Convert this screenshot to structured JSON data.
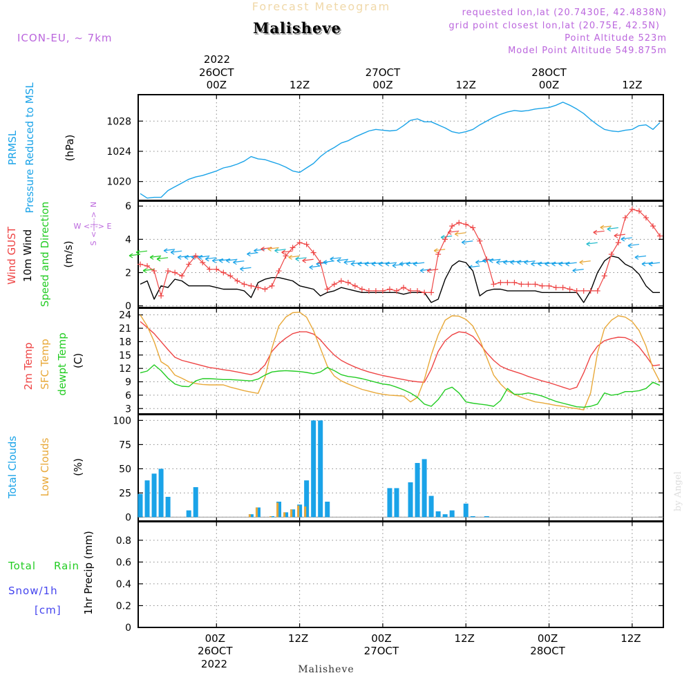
{
  "header": {
    "top_title": "Forecast Meteogram",
    "location": "Malisheve",
    "model": "ICON-EU, ~ 7km",
    "requested": "requested lon,lat (20.7430E, 42.4838N)",
    "grid_point": "grid point closest lon,lat (20.75E, 42.5N)",
    "point_alt": "Point Altitude 523m",
    "model_alt": "Model Point Altitude 549.875m",
    "credit": "by Angel",
    "bottom_location": "Malisheve"
  },
  "time_axis": {
    "top_year": "2022",
    "bottom_year": "2022",
    "ticks": [
      {
        "hour": 12,
        "label": "00Z",
        "date": "26OCT"
      },
      {
        "hour": 24,
        "label": "12Z",
        "date": ""
      },
      {
        "hour": 36,
        "label": "00Z",
        "date": "27OCT"
      },
      {
        "hour": 48,
        "label": "12Z",
        "date": ""
      },
      {
        "hour": 60,
        "label": "00Z",
        "date": "28OCT"
      },
      {
        "hour": 72,
        "label": "12Z",
        "date": ""
      }
    ],
    "range": [
      0.7,
      76.5
    ]
  },
  "colors": {
    "blue": "#1aa3e8",
    "red": "#ee4444",
    "green": "#22cc22",
    "orange": "#e8a838",
    "black": "#000000",
    "purple": "#bb66dd",
    "snow_blue": "#4444ee",
    "cream": "#f0d8a8",
    "grid": "#888888"
  },
  "panels": {
    "pressure": {
      "labels": [
        "PRMSL",
        "Pressure Reduced to MSL",
        "(hPa)"
      ],
      "yticks": [
        1020,
        1024,
        1028
      ]
    },
    "wind": {
      "labels": [
        "Wind GUST",
        "10m Wind",
        "Speed and Direction",
        "(m/s)"
      ],
      "compass": [
        "N",
        "W <-|-> E",
        "S"
      ],
      "yticks": [
        0,
        2,
        4,
        6
      ]
    },
    "temp": {
      "labels": [
        "2m Temp",
        "SFC Temp",
        "dewpt Temp",
        "(C)"
      ],
      "yticks": [
        3,
        6,
        9,
        12,
        15,
        18,
        21,
        24
      ]
    },
    "clouds": {
      "labels": [
        "Total Clouds",
        "Low Clouds",
        "(%)"
      ],
      "yticks": [
        0,
        25,
        50,
        75,
        100
      ]
    },
    "precip": {
      "labels": [
        "Total",
        "Rain",
        "Snow/1h",
        "[cm]",
        "1hr Precip (mm)"
      ],
      "yticks": [
        "0",
        "0.2",
        "0.4",
        "0.6",
        "0.8"
      ]
    }
  },
  "chart_data": {
    "type": "line",
    "x_unit": "hours from 25OCT 12Z",
    "pressure": {
      "name": "PRMSL",
      "ylim": [
        1017.5,
        1031.5
      ],
      "x": [
        1,
        2,
        3,
        4,
        5,
        6,
        7,
        8,
        9,
        10,
        11,
        12,
        13,
        14,
        15,
        16,
        17,
        18,
        19,
        20,
        21,
        22,
        23,
        24,
        25,
        26,
        27,
        28,
        29,
        30,
        31,
        32,
        33,
        34,
        35,
        36,
        37,
        38,
        39,
        40,
        41,
        42,
        43,
        44,
        45,
        46,
        47,
        48,
        49,
        50,
        51,
        52,
        53,
        54,
        55,
        56,
        57,
        58,
        59,
        60,
        61,
        62,
        63,
        64,
        65,
        66,
        67,
        68,
        69,
        70,
        71,
        72,
        73,
        74,
        75,
        76
      ],
      "values": [
        1018.4,
        1017.8,
        1017.9,
        1017.9,
        1018.8,
        1019.3,
        1019.8,
        1020.3,
        1020.6,
        1020.8,
        1021.1,
        1021.4,
        1021.8,
        1022.0,
        1022.3,
        1022.7,
        1023.3,
        1023.0,
        1022.9,
        1022.6,
        1022.3,
        1021.9,
        1021.4,
        1021.2,
        1021.8,
        1022.4,
        1023.3,
        1024.0,
        1024.5,
        1025.1,
        1025.4,
        1025.9,
        1026.3,
        1026.7,
        1026.9,
        1026.8,
        1026.7,
        1026.8,
        1027.4,
        1028.1,
        1028.3,
        1027.9,
        1027.9,
        1027.5,
        1027.1,
        1026.6,
        1026.4,
        1026.6,
        1026.9,
        1027.5,
        1028.0,
        1028.5,
        1028.9,
        1029.2,
        1029.4,
        1029.3,
        1029.4,
        1029.6,
        1029.7,
        1029.8,
        1030.1,
        1030.5,
        1030.1,
        1029.6,
        1029.0,
        1028.2,
        1027.5,
        1026.9,
        1026.7,
        1026.6,
        1026.8,
        1026.9,
        1027.4,
        1027.5,
        1026.9,
        1027.8
      ]
    },
    "wind": {
      "ylim": [
        -0.1,
        6.3
      ],
      "x": [
        1,
        2,
        3,
        4,
        5,
        6,
        7,
        8,
        9,
        10,
        11,
        12,
        13,
        14,
        15,
        16,
        17,
        18,
        19,
        20,
        21,
        22,
        23,
        24,
        25,
        26,
        27,
        28,
        29,
        30,
        31,
        32,
        33,
        34,
        35,
        36,
        37,
        38,
        39,
        40,
        41,
        42,
        43,
        44,
        45,
        46,
        47,
        48,
        49,
        50,
        51,
        52,
        53,
        54,
        55,
        56,
        57,
        58,
        59,
        60,
        61,
        62,
        63,
        64,
        65,
        66,
        67,
        68,
        69,
        70,
        71,
        72,
        73,
        74,
        75,
        76
      ],
      "series": [
        {
          "name": "Wind GUST",
          "values": [
            2.5,
            2.4,
            2.1,
            0.6,
            2.1,
            2.0,
            1.8,
            2.5,
            3.0,
            2.6,
            2.2,
            2.2,
            2.0,
            1.8,
            1.5,
            1.3,
            1.2,
            1.1,
            1.0,
            1.2,
            2.1,
            3.0,
            3.5,
            3.8,
            3.7,
            3.2,
            2.6,
            1.0,
            1.3,
            1.5,
            1.4,
            1.2,
            1.0,
            0.9,
            0.9,
            0.9,
            1.0,
            0.9,
            1.1,
            0.9,
            0.9,
            0.8,
            0.8,
            3.1,
            4.0,
            4.8,
            5.0,
            4.9,
            4.7,
            3.9,
            2.8,
            1.3,
            1.4,
            1.4,
            1.4,
            1.3,
            1.3,
            1.3,
            1.2,
            1.2,
            1.1,
            1.1,
            1.0,
            0.9,
            0.9,
            0.9,
            0.9,
            1.8,
            3.1,
            3.8,
            5.3,
            5.8,
            5.7,
            5.3,
            4.8,
            4.2
          ]
        },
        {
          "name": "10m Wind",
          "values": [
            1.3,
            1.5,
            0.4,
            1.2,
            1.1,
            1.6,
            1.5,
            1.2,
            1.2,
            1.2,
            1.2,
            1.1,
            1.0,
            1.0,
            1.0,
            0.9,
            0.5,
            1.4,
            1.6,
            1.7,
            1.7,
            1.6,
            1.5,
            1.2,
            1.1,
            1.0,
            0.6,
            0.8,
            0.9,
            1.1,
            1.0,
            0.9,
            0.8,
            0.8,
            0.8,
            0.8,
            0.8,
            0.8,
            0.7,
            0.8,
            0.8,
            0.8,
            0.2,
            0.4,
            1.6,
            2.4,
            2.7,
            2.6,
            2.1,
            0.6,
            0.9,
            1.0,
            1.0,
            0.9,
            0.9,
            0.9,
            0.9,
            0.9,
            0.8,
            0.8,
            0.8,
            0.8,
            0.8,
            0.8,
            0.2,
            0.9,
            2.0,
            2.7,
            3.0,
            2.9,
            2.5,
            2.3,
            1.9,
            1.2,
            0.8,
            0.8
          ]
        }
      ]
    },
    "temp": {
      "ylim": [
        1.8,
        25.5
      ],
      "x": [
        1,
        2,
        3,
        4,
        5,
        6,
        7,
        8,
        9,
        10,
        11,
        12,
        13,
        14,
        15,
        16,
        17,
        18,
        19,
        20,
        21,
        22,
        23,
        24,
        25,
        26,
        27,
        28,
        29,
        30,
        31,
        32,
        33,
        34,
        35,
        36,
        37,
        38,
        39,
        40,
        41,
        42,
        43,
        44,
        45,
        46,
        47,
        48,
        49,
        50,
        51,
        52,
        53,
        54,
        55,
        56,
        57,
        58,
        59,
        60,
        61,
        62,
        63,
        64,
        65,
        66,
        67,
        68,
        69,
        70,
        71,
        72,
        73,
        74,
        75,
        76
      ],
      "series": [
        {
          "name": "2m Temp",
          "values": [
            22.5,
            21.2,
            19.8,
            18.0,
            16.2,
            14.5,
            13.8,
            13.4,
            13.0,
            12.6,
            12.2,
            12.0,
            11.7,
            11.5,
            11.2,
            10.9,
            10.6,
            11.2,
            12.8,
            15.8,
            17.5,
            18.8,
            19.8,
            20.2,
            20.2,
            19.7,
            18.4,
            16.6,
            15.0,
            13.8,
            13.0,
            12.3,
            11.7,
            11.2,
            10.8,
            10.4,
            10.1,
            9.8,
            9.5,
            9.2,
            9.0,
            8.9,
            11.8,
            15.8,
            18.2,
            19.5,
            20.2,
            20.0,
            19.2,
            17.5,
            15.5,
            13.8,
            12.5,
            11.8,
            11.3,
            10.8,
            10.2,
            9.7,
            9.2,
            8.8,
            8.3,
            7.8,
            7.3,
            7.8,
            11.0,
            14.8,
            17.0,
            18.2,
            18.7,
            19.0,
            18.9,
            18.2,
            16.8,
            14.8,
            12.6,
            12.8
          ]
        },
        {
          "name": "SFC Temp",
          "values": [
            24.0,
            21.5,
            18.0,
            13.5,
            12.5,
            10.5,
            9.8,
            9.0,
            8.6,
            8.4,
            8.3,
            8.3,
            8.3,
            7.8,
            7.4,
            7.0,
            6.7,
            6.4,
            10.0,
            16.5,
            21.5,
            23.5,
            24.5,
            24.6,
            23.5,
            20.5,
            16.5,
            12.5,
            10.3,
            9.2,
            8.5,
            7.9,
            7.3,
            6.9,
            6.5,
            6.2,
            6.0,
            5.9,
            5.8,
            4.5,
            5.5,
            9.5,
            15.0,
            19.5,
            22.8,
            23.8,
            23.7,
            23.0,
            21.5,
            18.5,
            14.5,
            10.5,
            8.5,
            7.0,
            6.2,
            5.5,
            5.0,
            4.5,
            4.3,
            4.0,
            3.7,
            3.5,
            3.2,
            3.0,
            2.7,
            6.5,
            15.5,
            21.0,
            22.8,
            23.8,
            23.5,
            22.5,
            20.5,
            17.0,
            12.0,
            9.0
          ]
        },
        {
          "name": "dewpt Temp",
          "values": [
            11.0,
            11.4,
            12.8,
            11.5,
            9.8,
            8.5,
            8.0,
            7.9,
            9.2,
            9.7,
            9.7,
            9.6,
            9.5,
            9.5,
            9.4,
            9.3,
            9.2,
            9.6,
            10.5,
            11.2,
            11.4,
            11.5,
            11.4,
            11.3,
            11.1,
            10.8,
            11.2,
            12.2,
            11.5,
            10.6,
            10.2,
            10.0,
            9.7,
            9.3,
            8.9,
            8.5,
            8.3,
            7.8,
            7.2,
            6.5,
            5.5,
            4.0,
            3.5,
            5.0,
            7.2,
            7.8,
            6.5,
            4.5,
            4.2,
            4.0,
            3.8,
            3.5,
            4.8,
            7.5,
            6.2,
            6.2,
            6.5,
            6.2,
            5.8,
            5.2,
            4.6,
            4.2,
            3.8,
            3.4,
            3.3,
            3.5,
            4.0,
            6.5,
            6.0,
            6.2,
            6.8,
            6.8,
            7.0,
            7.5,
            8.9,
            8.2
          ]
        }
      ]
    },
    "clouds": {
      "ylim": [
        -4,
        106
      ],
      "x": [
        1,
        2,
        3,
        4,
        5,
        6,
        7,
        8,
        9,
        10,
        11,
        12,
        13,
        14,
        15,
        16,
        17,
        18,
        19,
        20,
        21,
        22,
        23,
        24,
        25,
        26,
        27,
        28,
        29,
        30,
        31,
        32,
        33,
        34,
        35,
        36,
        37,
        38,
        39,
        40,
        41,
        42,
        43,
        44,
        45,
        46,
        47,
        48,
        49,
        50,
        51,
        52,
        53,
        54,
        55,
        56,
        57,
        58,
        59,
        60,
        61,
        62,
        63,
        64,
        65,
        66,
        67,
        68,
        69,
        70,
        71,
        72,
        73,
        74,
        75,
        76
      ],
      "series": [
        {
          "name": "Total Clouds",
          "values": [
            24,
            38,
            45,
            50,
            21,
            0,
            0,
            7,
            31,
            0,
            0,
            0,
            0,
            0,
            0,
            0,
            3,
            10,
            0,
            1,
            16,
            5,
            8,
            13,
            38,
            100,
            100,
            16,
            0,
            0,
            0,
            0,
            0,
            0,
            0,
            0,
            30,
            30,
            0,
            36,
            56,
            60,
            22,
            6,
            3,
            7,
            0,
            14,
            1,
            0,
            1,
            0,
            0,
            0,
            0,
            0,
            0,
            0,
            0,
            0,
            0,
            0,
            0,
            0,
            0,
            0,
            0,
            0,
            0,
            0,
            0,
            0,
            0,
            0,
            0,
            0
          ]
        },
        {
          "name": "Low Clouds",
          "values": [
            0,
            0,
            0,
            0,
            0,
            0,
            0,
            0,
            0,
            0,
            0,
            0,
            0,
            0,
            0,
            0,
            3,
            10,
            0,
            1,
            15,
            5,
            8,
            12,
            11,
            0,
            0,
            0,
            0,
            0,
            0,
            0,
            0,
            0,
            0,
            0,
            0,
            0,
            0,
            0,
            0,
            0,
            0,
            0,
            0,
            0,
            0,
            0,
            0,
            0,
            0,
            0,
            0,
            0,
            0,
            0,
            0,
            0,
            0,
            0,
            0,
            0,
            0,
            0,
            0,
            0,
            0,
            0,
            0,
            0,
            0,
            0,
            0,
            0,
            0,
            0
          ]
        }
      ]
    },
    "precip": {
      "ylim": [
        0,
        0.97
      ],
      "series": [
        {
          "name": "Total",
          "values": []
        },
        {
          "name": "Rain",
          "values": []
        },
        {
          "name": "Snow/1h",
          "values": []
        }
      ]
    }
  }
}
